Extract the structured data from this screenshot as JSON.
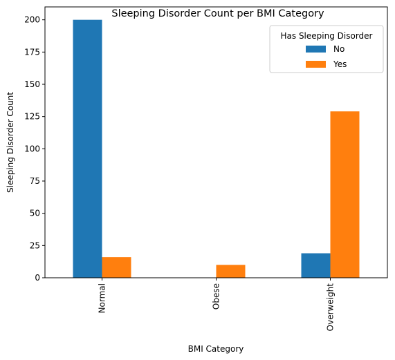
{
  "chart_data": {
    "type": "bar",
    "title": "Sleeping Disorder Count per BMI Category",
    "xlabel": "BMI Category",
    "ylabel": "Sleeping Disorder Count",
    "categories": [
      "Normal",
      "Obese",
      "Overweight"
    ],
    "series": [
      {
        "name": "No",
        "values": [
          200,
          0,
          19
        ],
        "color": "#1f77b4"
      },
      {
        "name": "Yes",
        "values": [
          16,
          10,
          129
        ],
        "color": "#ff7f0e"
      }
    ],
    "ylim": [
      0,
      210
    ],
    "yticks": [
      0,
      25,
      50,
      75,
      100,
      125,
      150,
      175,
      200
    ],
    "grid": false,
    "legend": {
      "title": "Has Sleeping Disorder",
      "placement": "top-right"
    }
  }
}
